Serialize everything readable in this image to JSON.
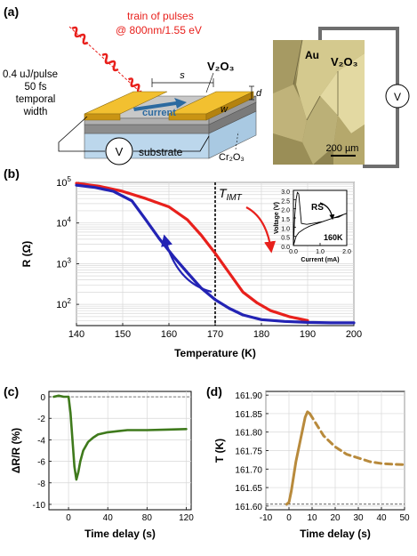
{
  "panels": {
    "a": {
      "label": "(a)",
      "pulse_train_text": [
        "train of pulses",
        "@ 800nm/1.55 eV"
      ],
      "pulse_energy_text": [
        "0.4 uJ/pulse",
        "50 fs",
        "temporal",
        "width"
      ],
      "material_label": "V₂O₃",
      "dimension_labels": {
        "s": "s",
        "w": "w",
        "d": "d"
      },
      "current_label": "current",
      "voltmeter_label": "V",
      "substrate_label": "substrate",
      "buffer_label": "Cr₂O₃",
      "micrograph": {
        "au_label": "Au",
        "material_label": "V₂O₃",
        "scalebar_label": "200 µm",
        "voltmeter_label": "V"
      }
    },
    "b": {
      "label": "(b)",
      "tmit_label_main": "T",
      "tmit_label_sub": "IMT",
      "inset": {
        "annotation": "RS",
        "temperature_label": "160K",
        "xlabel": "Current (mA)",
        "ylabel": "Voltage (V)"
      }
    },
    "c": {
      "label": "(c)"
    },
    "d": {
      "label": "(d)"
    }
  },
  "colors": {
    "heating": "#e8201c",
    "cooling": "#2323b4",
    "panel_c": "#3f7a1c",
    "panel_d": "#b88a3c",
    "gold": "#e6b22c",
    "current_arrow": "#2c6aa0"
  },
  "chart_data": [
    {
      "type": "line",
      "panel": "b",
      "xlabel": "Temperature (K)",
      "ylabel": "R (Ω)",
      "xlim": [
        140,
        200
      ],
      "ylim": [
        30,
        100000
      ],
      "yscale": "log",
      "xticks": [
        140,
        150,
        160,
        170,
        180,
        190,
        200
      ],
      "yticks": [
        100,
        1000,
        10000,
        100000
      ],
      "ytick_labels": [
        [
          "10",
          "2"
        ],
        [
          "10",
          "3"
        ],
        [
          "10",
          "4"
        ],
        [
          "10",
          "5"
        ]
      ],
      "vline_x": 170,
      "series": [
        {
          "key": "heating",
          "x": [
            140,
            145,
            150,
            155,
            160,
            164,
            167,
            170,
            173,
            176,
            179,
            182,
            186,
            190
          ],
          "y": [
            95000,
            80000,
            60000,
            40000,
            25000,
            12000,
            5000,
            1800,
            600,
            200,
            110,
            70,
            50,
            40
          ]
        },
        {
          "key": "cooling",
          "x": [
            200,
            195,
            190,
            185,
            180,
            176,
            173,
            170,
            167,
            164,
            161,
            158,
            155,
            152,
            148,
            144,
            140
          ],
          "y": [
            35,
            35,
            36,
            38,
            42,
            55,
            80,
            130,
            250,
            600,
            1500,
            4000,
            12000,
            35000,
            60000,
            75000,
            85000
          ]
        }
      ]
    },
    {
      "type": "line",
      "panel": "b-inset",
      "xlabel": "Current (mA)",
      "ylabel": "Voltage (V)",
      "xlim": [
        0,
        2.0
      ],
      "ylim": [
        0,
        3.0
      ],
      "xticks": [
        0.0,
        1.0,
        2.0
      ],
      "yticks": [
        0.0,
        0.5,
        1.0,
        1.5,
        2.0,
        2.5,
        3.0
      ],
      "series": [
        {
          "key": "loop",
          "x": [
            0,
            0.05,
            0.1,
            0.15,
            0.2,
            0.25,
            0.3,
            0.5,
            0.7,
            0.9,
            1.1,
            1.3,
            1.5,
            1.7,
            1.9,
            2.0,
            1.8,
            1.6,
            1.4,
            1.2,
            1.0,
            0.8,
            0.6,
            0.4,
            0.2,
            0.1,
            0.0
          ],
          "y": [
            0,
            1.6,
            2.5,
            2.9,
            2.8,
            2.0,
            1.2,
            1.15,
            1.2,
            1.25,
            1.3,
            1.4,
            1.5,
            1.55,
            1.7,
            1.75,
            1.65,
            1.55,
            1.45,
            1.35,
            1.25,
            1.15,
            1.05,
            0.9,
            0.7,
            0.5,
            0
          ]
        }
      ]
    },
    {
      "type": "line",
      "panel": "c",
      "xlabel": "Time delay (s)",
      "ylabel": "ΔR/R (%)",
      "xlim": [
        -20,
        125
      ],
      "ylim": [
        -10.5,
        0.5
      ],
      "xticks": [
        0,
        40,
        80,
        120
      ],
      "yticks": [
        0,
        -2,
        -4,
        -6,
        -8,
        -10
      ],
      "hline_y": 0,
      "series": [
        {
          "key": "panel_c",
          "x": [
            -15,
            -10,
            -5,
            0,
            2,
            4,
            6,
            8,
            10,
            12,
            15,
            20,
            25,
            30,
            40,
            50,
            60,
            80,
            100,
            120
          ],
          "y": [
            0,
            0.1,
            0,
            0,
            -1.5,
            -4,
            -6.5,
            -7.7,
            -7,
            -6,
            -5,
            -4.2,
            -3.8,
            -3.5,
            -3.3,
            -3.2,
            -3.1,
            -3.1,
            -3.05,
            -3.0
          ]
        }
      ]
    },
    {
      "type": "line",
      "panel": "d",
      "xlabel": "Time delay (s)",
      "ylabel": "T (K)",
      "xlim": [
        -10,
        50
      ],
      "ylim": [
        161.59,
        161.91
      ],
      "xticks": [
        -10,
        0,
        10,
        20,
        30,
        40,
        50
      ],
      "yticks": [
        161.6,
        161.65,
        161.7,
        161.75,
        161.8,
        161.85,
        161.9
      ],
      "ytick_labels": [
        "161.60",
        "161.65",
        "161.70",
        "161.75",
        "161.80",
        "161.85",
        "161.90"
      ],
      "hline_y": 161.605,
      "series": [
        {
          "key": "panel_d_solid",
          "x": [
            -1,
            0,
            1,
            2,
            3,
            4,
            5,
            6,
            7,
            8,
            9
          ],
          "y": [
            161.605,
            161.61,
            161.64,
            161.68,
            161.72,
            161.75,
            161.78,
            161.81,
            161.84,
            161.855,
            161.85
          ]
        },
        {
          "key": "panel_d_dashed",
          "x": [
            9,
            12,
            15,
            20,
            25,
            30,
            35,
            40,
            45,
            50
          ],
          "y": [
            161.85,
            161.82,
            161.79,
            161.76,
            161.74,
            161.73,
            161.72,
            161.715,
            161.713,
            161.712
          ]
        }
      ]
    }
  ]
}
